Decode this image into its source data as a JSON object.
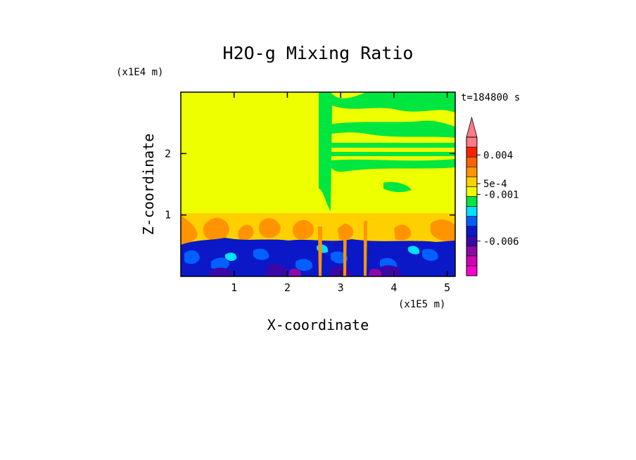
{
  "chart_data": {
    "type": "heatmap",
    "title": "H2O-g Mixing Ratio",
    "xlabel": "X-coordinate",
    "ylabel": "Z-coordinate",
    "x_scale_label": "(x1E5 m)",
    "y_scale_label": "(x1E4 m)",
    "time_label": "t=184800 s",
    "xlim": [
      0,
      5.15
    ],
    "ylim": [
      0,
      3.0
    ],
    "x_ticks": [
      {
        "value": 1,
        "label": "1"
      },
      {
        "value": 2,
        "label": "2"
      },
      {
        "value": 3,
        "label": "3"
      },
      {
        "value": 4,
        "label": "4"
      },
      {
        "value": 5,
        "label": "5"
      }
    ],
    "y_ticks": [
      {
        "value": 1,
        "label": "1"
      },
      {
        "value": 2,
        "label": "2"
      }
    ],
    "colorbar": {
      "colors": [
        "#ff00cc",
        "#d400b4",
        "#8a0aa6",
        "#3a08a8",
        "#0a18c8",
        "#0060ff",
        "#00e0ff",
        "#00e640",
        "#eeff00",
        "#ffd000",
        "#ff9400",
        "#ff6200",
        "#ff2000",
        "#ff7a88"
      ],
      "labels": [
        {
          "level": 12.2,
          "text": "0.004"
        },
        {
          "level": 9.3,
          "text": "5e-4"
        },
        {
          "level": 8.2,
          "text": "-0.001"
        },
        {
          "level": 3.5,
          "text": "-0.006"
        }
      ]
    },
    "regions": [
      {
        "x": [
          0,
          2.55
        ],
        "y": [
          1.02,
          3.0
        ],
        "value": "5e-4"
      },
      {
        "x": [
          2.55,
          5.15
        ],
        "y": [
          1.1,
          3.0
        ],
        "value": "mixed 0 to 5e-4"
      },
      {
        "x": [
          0,
          5.15
        ],
        "y": [
          0.55,
          1.02
        ],
        "value": "0.002 to 0.004"
      },
      {
        "x": [
          0,
          5.15
        ],
        "y": [
          0,
          0.6
        ],
        "value": "-0.001 to -0.006"
      }
    ]
  }
}
